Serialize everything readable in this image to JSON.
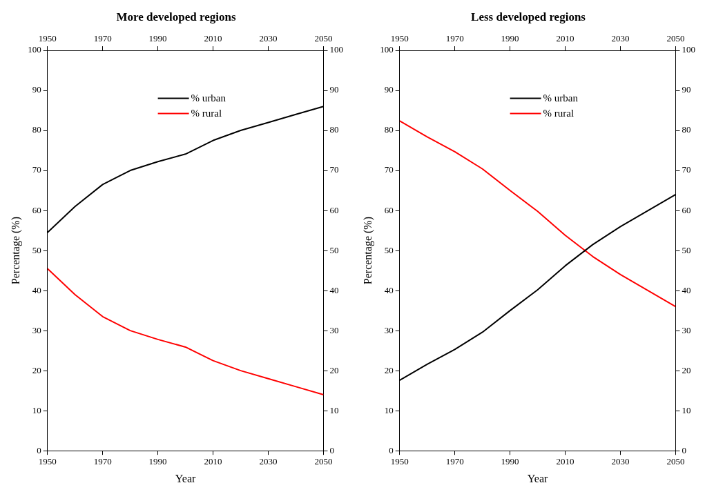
{
  "chart_data": [
    {
      "type": "line",
      "title": "More developed regions",
      "xlabel": "Year",
      "ylabel": "Percentage (%)",
      "x": [
        1950,
        1960,
        1970,
        1980,
        1990,
        2000,
        2010,
        2020,
        2030,
        2040,
        2050
      ],
      "series": [
        {
          "name": "% urban",
          "color": "#000000",
          "values": [
            54.5,
            61,
            66.5,
            70,
            72.2,
            74.1,
            77.5,
            80,
            82,
            84,
            86
          ]
        },
        {
          "name": "% rural",
          "color": "#ff0000",
          "values": [
            45.5,
            39,
            33.5,
            30,
            27.8,
            25.9,
            22.5,
            20,
            18,
            16,
            14
          ]
        }
      ],
      "xlim": [
        1950,
        2050
      ],
      "xticks": [
        1950,
        1970,
        1990,
        2010,
        2030,
        2050
      ],
      "x2lim": [
        1950,
        2050
      ],
      "x2ticks": [
        1950,
        1970,
        1990,
        2010,
        2030,
        2050
      ],
      "ylim": [
        0,
        100
      ],
      "yticks": [
        0,
        10,
        20,
        30,
        40,
        50,
        60,
        70,
        80,
        90,
        100
      ],
      "y2lim": [
        0,
        100
      ],
      "y2ticks": [
        0,
        10,
        20,
        30,
        40,
        50,
        60,
        70,
        80,
        90,
        100
      ],
      "grid": false,
      "legend": "top",
      "marker": "none",
      "line_style": "solid"
    },
    {
      "type": "line",
      "title": "Less developed regions",
      "xlabel": "Year",
      "ylabel": "Percentage (%)",
      "x": [
        1950,
        1960,
        1970,
        1980,
        1990,
        2000,
        2010,
        2020,
        2030,
        2040,
        2050
      ],
      "series": [
        {
          "name": "% urban",
          "color": "#000000",
          "values": [
            17.6,
            21.6,
            25.3,
            29.6,
            35,
            40.2,
            46.2,
            51.5,
            56,
            60,
            64
          ]
        },
        {
          "name": "% rural",
          "color": "#ff0000",
          "values": [
            82.4,
            78.4,
            74.7,
            70.4,
            65,
            59.8,
            53.8,
            48.5,
            44,
            40,
            36
          ]
        }
      ],
      "xlim": [
        1950,
        2050
      ],
      "xticks": [
        1950,
        1970,
        1990,
        2010,
        2030,
        2050
      ],
      "x2lim": [
        1950,
        2050
      ],
      "x2ticks": [
        1950,
        1970,
        1990,
        2010,
        2030,
        2050
      ],
      "ylim": [
        0,
        100
      ],
      "yticks": [
        0,
        10,
        20,
        30,
        40,
        50,
        60,
        70,
        80,
        90,
        100
      ],
      "y2lim": [
        0,
        100
      ],
      "y2ticks": [
        0,
        10,
        20,
        30,
        40,
        50,
        60,
        70,
        80,
        90,
        100
      ],
      "grid": false,
      "legend": "top",
      "marker": "none",
      "line_style": "solid"
    }
  ]
}
